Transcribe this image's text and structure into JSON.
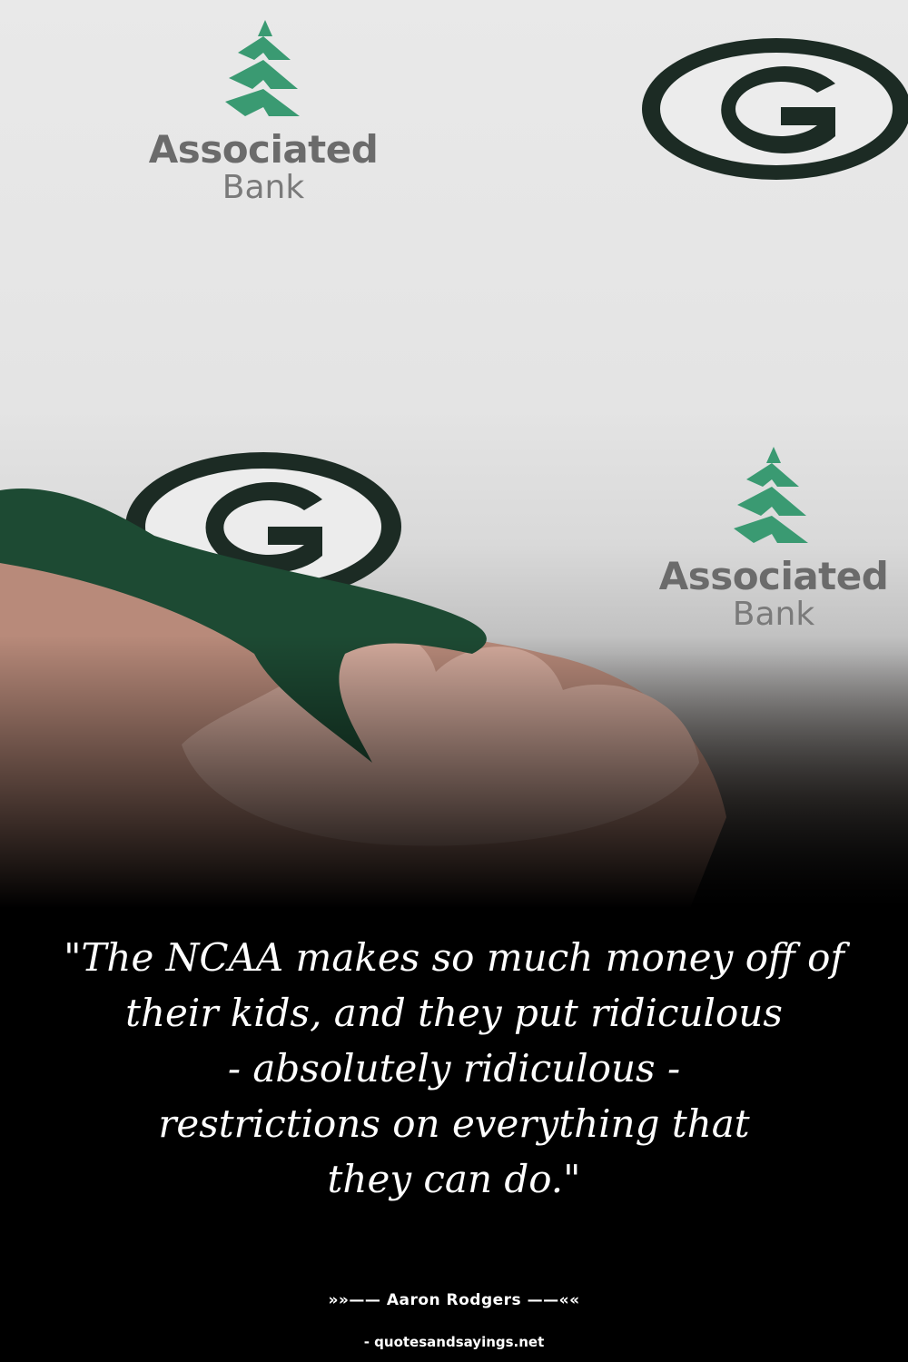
{
  "photo": {
    "logos": [
      {
        "line1": "Associated",
        "line2": "Bank"
      },
      {
        "line1": "Associated",
        "line2": "Bank"
      }
    ],
    "colors": {
      "bank_green": "#3a9a72",
      "packers_green": "#1f3a2c",
      "jersey_green": "#1d4a33"
    }
  },
  "quote": {
    "lines": [
      "\"The NCAA makes so much money off of",
      "their kids, and they put ridiculous",
      "- absolutely ridiculous -",
      "restrictions on everything that",
      "they can do.\""
    ]
  },
  "author": "»»—— Aaron Rodgers ——««",
  "site": "- quotesandsayings.net"
}
